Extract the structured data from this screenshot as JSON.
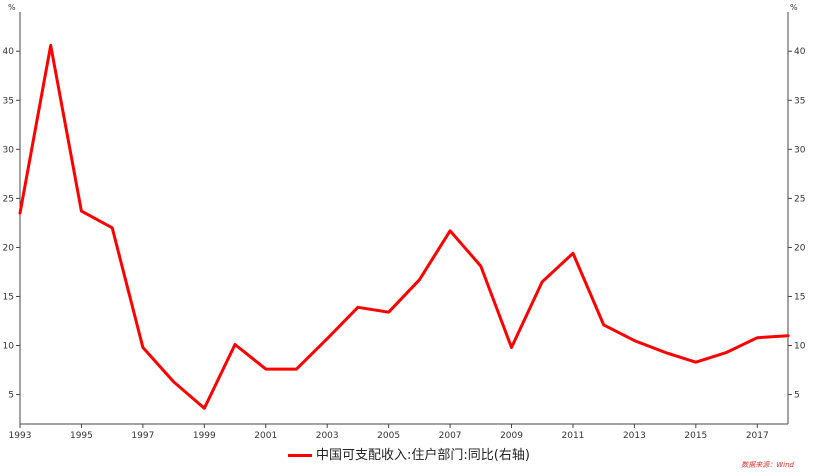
{
  "chart_data": {
    "type": "line",
    "x": [
      1993,
      1994,
      1995,
      1996,
      1997,
      1998,
      1999,
      2000,
      2001,
      2002,
      2003,
      2004,
      2005,
      2006,
      2007,
      2008,
      2009,
      2010,
      2011,
      2012,
      2013,
      2014,
      2015,
      2016,
      2017,
      2018
    ],
    "series": [
      {
        "name": "中国可支配收入:住户部门:同比(右轴)",
        "color": "#ff0000",
        "values": [
          23.5,
          40.6,
          23.7,
          22.0,
          9.8,
          6.3,
          3.6,
          10.1,
          7.6,
          7.6,
          10.7,
          13.9,
          13.4,
          16.7,
          21.7,
          18.1,
          9.8,
          16.5,
          19.4,
          12.1,
          10.5,
          9.3,
          8.3,
          9.3,
          10.8,
          11.0
        ]
      }
    ],
    "x_ticks": [
      "1993",
      "1995",
      "1997",
      "1999",
      "2001",
      "2003",
      "2005",
      "2007",
      "2009",
      "2011",
      "2013",
      "2015",
      "2017"
    ],
    "y_ticks": [
      "5",
      "10",
      "15",
      "20",
      "25",
      "30",
      "35",
      "40"
    ],
    "y_unit": "%",
    "xlim": [
      1993,
      2018
    ],
    "ylim": [
      2,
      44
    ],
    "grid": false,
    "legend_position": "bottom"
  },
  "legend": {
    "label": "中国可支配收入:住户部门:同比(右轴)"
  },
  "source_note": "数据来源：Wind"
}
